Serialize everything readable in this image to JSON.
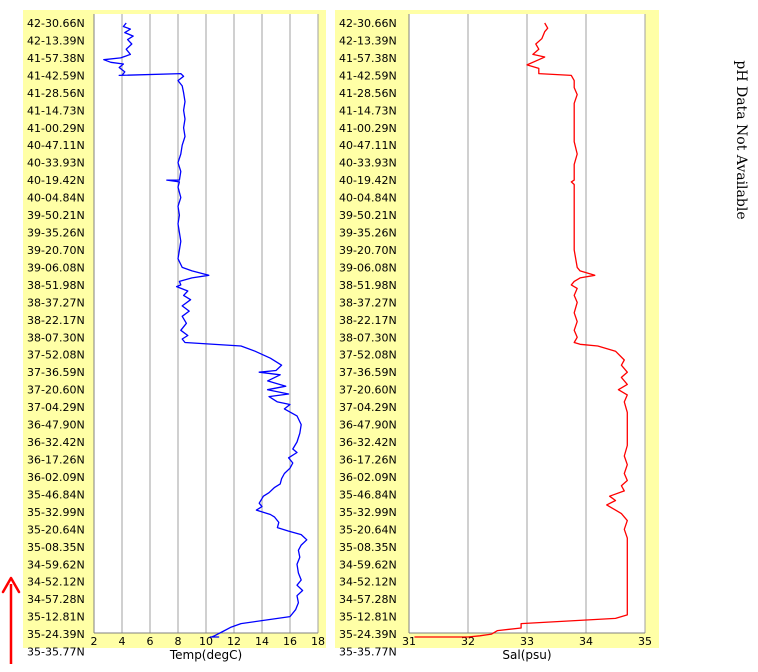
{
  "chart_data": [
    {
      "type": "line",
      "xlabel": "Temp(degC)",
      "xlim": [
        2,
        18
      ],
      "xticks": [
        2,
        4,
        6,
        8,
        10,
        12,
        14,
        16,
        18
      ],
      "ytick_labels": [
        "42-30.66N",
        "42-13.39N",
        "41-57.38N",
        "41-42.59N",
        "41-28.56N",
        "41-14.73N",
        "41-00.29N",
        "40-47.11N",
        "40-33.93N",
        "40-19.42N",
        "40-04.84N",
        "39-50.21N",
        "39-35.26N",
        "39-20.70N",
        "39-06.08N",
        "38-51.98N",
        "38-37.27N",
        "38-22.17N",
        "38-07.30N",
        "37-52.08N",
        "37-36.59N",
        "37-20.60N",
        "37-04.29N",
        "36-47.90N",
        "36-32.42N",
        "36-17.26N",
        "36-02.09N",
        "35-46.84N",
        "35-32.99N",
        "35-20.64N",
        "35-08.35N",
        "34-59.62N",
        "34-52.12N",
        "34-57.28N",
        "35-12.81N",
        "35-24.39N",
        "35-35.77N"
      ],
      "grid": true,
      "series": [
        {
          "color": "#0000ff",
          "points": [
            [
              4.3,
              0
            ],
            [
              4.1,
              0.2
            ],
            [
              4.6,
              0.35
            ],
            [
              4.2,
              0.55
            ],
            [
              4.8,
              0.75
            ],
            [
              4.4,
              0.95
            ],
            [
              4.7,
              1.2
            ],
            [
              4.3,
              1.5
            ],
            [
              4.6,
              1.8
            ],
            [
              3.9,
              2.0
            ],
            [
              2.7,
              2.1
            ],
            [
              3.2,
              2.25
            ],
            [
              4.1,
              2.35
            ],
            [
              3.8,
              2.55
            ],
            [
              4.2,
              2.8
            ],
            [
              4.0,
              3.0
            ],
            [
              3.8,
              3.0
            ],
            [
              8.2,
              2.9
            ],
            [
              8.4,
              3.05
            ],
            [
              8.0,
              3.3
            ],
            [
              8.3,
              3.6
            ],
            [
              8.4,
              4.0
            ],
            [
              8.5,
              4.5
            ],
            [
              8.4,
              5.0
            ],
            [
              8.5,
              5.5
            ],
            [
              8.4,
              6.0
            ],
            [
              8.5,
              6.5
            ],
            [
              8.3,
              7.0
            ],
            [
              8.2,
              7.5
            ],
            [
              8.0,
              8.0
            ],
            [
              8.2,
              8.5
            ],
            [
              8.1,
              9.0
            ],
            [
              7.2,
              9.0
            ],
            [
              8.1,
              9.1
            ],
            [
              8.0,
              9.4
            ],
            [
              8.2,
              10.0
            ],
            [
              8.0,
              10.5
            ],
            [
              8.1,
              11.0
            ],
            [
              8.0,
              11.5
            ],
            [
              8.1,
              12.0
            ],
            [
              8.2,
              12.5
            ],
            [
              8.1,
              13.0
            ],
            [
              8.0,
              13.5
            ],
            [
              8.3,
              14.0
            ],
            [
              9.0,
              14.2
            ],
            [
              10.2,
              14.45
            ],
            [
              9.0,
              14.6
            ],
            [
              8.1,
              14.8
            ],
            [
              8.2,
              15.0
            ],
            [
              7.9,
              15.1
            ],
            [
              8.7,
              15.35
            ],
            [
              8.4,
              15.6
            ],
            [
              8.9,
              15.85
            ],
            [
              8.3,
              16.2
            ],
            [
              8.8,
              16.5
            ],
            [
              8.3,
              16.8
            ],
            [
              8.6,
              17.2
            ],
            [
              8.2,
              17.6
            ],
            [
              8.7,
              17.9
            ],
            [
              8.3,
              18.1
            ],
            [
              8.5,
              18.3
            ],
            [
              12.5,
              18.5
            ],
            [
              13.5,
              18.8
            ],
            [
              14.6,
              19.2
            ],
            [
              15.4,
              19.6
            ],
            [
              15.0,
              19.9
            ],
            [
              13.8,
              20.0
            ],
            [
              15.3,
              20.15
            ],
            [
              14.4,
              20.5
            ],
            [
              15.7,
              20.8
            ],
            [
              14.4,
              21.0
            ],
            [
              15.9,
              21.25
            ],
            [
              14.5,
              21.4
            ],
            [
              15.1,
              21.7
            ],
            [
              16.0,
              21.85
            ],
            [
              15.6,
              22.1
            ],
            [
              16.5,
              22.5
            ],
            [
              16.8,
              23.0
            ],
            [
              16.7,
              23.5
            ],
            [
              16.5,
              24.0
            ],
            [
              16.2,
              24.4
            ],
            [
              16.5,
              24.6
            ],
            [
              15.9,
              24.9
            ],
            [
              16.2,
              25.2
            ],
            [
              16.0,
              25.5
            ],
            [
              15.6,
              25.8
            ],
            [
              15.4,
              26.1
            ],
            [
              15.3,
              26.4
            ],
            [
              14.9,
              26.6
            ],
            [
              14.5,
              26.9
            ],
            [
              14.1,
              27.1
            ],
            [
              13.8,
              27.5
            ],
            [
              14.0,
              27.7
            ],
            [
              13.6,
              27.9
            ],
            [
              14.6,
              28.15
            ],
            [
              14.9,
              28.3
            ],
            [
              15.2,
              28.6
            ],
            [
              15.1,
              28.9
            ],
            [
              15.9,
              29.1
            ],
            [
              16.8,
              29.3
            ],
            [
              17.2,
              29.6
            ],
            [
              16.8,
              29.9
            ],
            [
              16.6,
              30.2
            ],
            [
              16.7,
              30.6
            ],
            [
              16.5,
              31.0
            ],
            [
              16.6,
              31.5
            ],
            [
              16.8,
              31.9
            ],
            [
              16.5,
              32.2
            ],
            [
              16.9,
              32.5
            ],
            [
              16.5,
              32.8
            ],
            [
              16.6,
              33.2
            ],
            [
              16.4,
              33.6
            ],
            [
              16.0,
              34.0
            ],
            [
              12.5,
              34.4
            ],
            [
              11.8,
              34.6
            ],
            [
              11.2,
              34.85
            ],
            [
              10.6,
              35.1
            ],
            [
              10.4,
              35.4
            ],
            [
              10.9,
              35.6
            ],
            [
              10.3,
              35.8
            ],
            [
              10.6,
              36.0
            ],
            [
              10.3,
              36.2
            ]
          ]
        }
      ]
    },
    {
      "type": "line",
      "xlabel": "Sal(psu)",
      "xlim": [
        31,
        35
      ],
      "xticks": [
        31,
        32,
        33,
        34,
        35
      ],
      "ytick_labels": [
        "42-30.66N",
        "42-13.39N",
        "41-57.38N",
        "41-42.59N",
        "41-28.56N",
        "41-14.73N",
        "41-00.29N",
        "40-47.11N",
        "40-33.93N",
        "40-19.42N",
        "40-04.84N",
        "39-50.21N",
        "39-35.26N",
        "39-20.70N",
        "39-06.08N",
        "38-51.98N",
        "38-37.27N",
        "38-22.17N",
        "38-07.30N",
        "37-52.08N",
        "37-36.59N",
        "37-20.60N",
        "37-04.29N",
        "36-47.90N",
        "36-32.42N",
        "36-17.26N",
        "36-02.09N",
        "35-46.84N",
        "35-32.99N",
        "35-20.64N",
        "35-08.35N",
        "34-59.62N",
        "34-52.12N",
        "34-57.28N",
        "35-12.81N",
        "35-24.39N",
        "35-35.77N"
      ],
      "grid": true,
      "series": [
        {
          "color": "#ff0000",
          "points": [
            [
              33.3,
              0
            ],
            [
              33.35,
              0.3
            ],
            [
              33.3,
              0.5
            ],
            [
              33.25,
              0.9
            ],
            [
              33.15,
              1.2
            ],
            [
              33.2,
              1.5
            ],
            [
              33.1,
              1.8
            ],
            [
              33.3,
              1.95
            ],
            [
              33.2,
              2.1
            ],
            [
              33.0,
              2.4
            ],
            [
              33.2,
              2.6
            ],
            [
              33.2,
              2.9
            ],
            [
              33.75,
              3.0
            ],
            [
              33.8,
              3.3
            ],
            [
              33.8,
              3.7
            ],
            [
              33.85,
              4.1
            ],
            [
              33.8,
              4.6
            ],
            [
              33.8,
              5.2
            ],
            [
              33.8,
              6.0
            ],
            [
              33.8,
              6.8
            ],
            [
              33.85,
              7.5
            ],
            [
              33.8,
              8.1
            ],
            [
              33.8,
              8.6
            ],
            [
              33.8,
              9.0
            ],
            [
              33.75,
              9.1
            ],
            [
              33.8,
              9.25
            ],
            [
              33.8,
              10.0
            ],
            [
              33.8,
              11.0
            ],
            [
              33.8,
              12.0
            ],
            [
              33.8,
              13.0
            ],
            [
              33.85,
              14.0
            ],
            [
              33.9,
              14.2
            ],
            [
              34.15,
              14.45
            ],
            [
              33.9,
              14.6
            ],
            [
              33.8,
              14.8
            ],
            [
              33.75,
              15.0
            ],
            [
              33.85,
              15.2
            ],
            [
              33.8,
              15.6
            ],
            [
              33.85,
              16.0
            ],
            [
              33.8,
              16.6
            ],
            [
              33.85,
              17.1
            ],
            [
              33.8,
              17.6
            ],
            [
              33.85,
              18.0
            ],
            [
              33.8,
              18.3
            ],
            [
              33.9,
              18.4
            ],
            [
              34.2,
              18.5
            ],
            [
              34.5,
              18.8
            ],
            [
              34.65,
              19.3
            ],
            [
              34.6,
              19.6
            ],
            [
              34.7,
              20.0
            ],
            [
              34.6,
              20.3
            ],
            [
              34.7,
              20.7
            ],
            [
              34.55,
              21.0
            ],
            [
              34.7,
              21.3
            ],
            [
              34.65,
              21.7
            ],
            [
              34.7,
              22.3
            ],
            [
              34.7,
              23.2
            ],
            [
              34.7,
              24.2
            ],
            [
              34.65,
              24.8
            ],
            [
              34.7,
              25.3
            ],
            [
              34.65,
              25.8
            ],
            [
              34.7,
              26.2
            ],
            [
              34.6,
              26.5
            ],
            [
              34.65,
              26.8
            ],
            [
              34.4,
              27.1
            ],
            [
              34.5,
              27.35
            ],
            [
              34.35,
              27.6
            ],
            [
              34.5,
              27.9
            ],
            [
              34.6,
              28.1
            ],
            [
              34.7,
              28.5
            ],
            [
              34.65,
              29.0
            ],
            [
              34.7,
              29.5
            ],
            [
              34.7,
              30.3
            ],
            [
              34.7,
              31.2
            ],
            [
              34.7,
              32.2
            ],
            [
              34.7,
              33.2
            ],
            [
              34.7,
              33.9
            ],
            [
              34.5,
              34.1
            ],
            [
              33.7,
              34.25
            ],
            [
              32.9,
              34.4
            ],
            [
              32.9,
              34.65
            ],
            [
              32.5,
              34.8
            ],
            [
              32.4,
              35.0
            ],
            [
              32.2,
              35.1
            ],
            [
              32.0,
              35.25
            ],
            [
              31.5,
              35.4
            ],
            [
              31.3,
              35.55
            ],
            [
              31.1,
              35.65
            ],
            [
              31.4,
              35.75
            ],
            [
              31.2,
              35.9
            ],
            [
              31.5,
              36.05
            ],
            [
              31.2,
              36.2
            ]
          ]
        }
      ]
    }
  ],
  "side_note": "pH Data Not Available",
  "arrow_color": "#ff0000"
}
